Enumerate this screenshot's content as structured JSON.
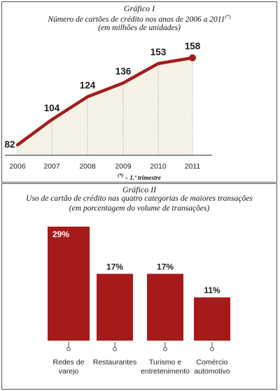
{
  "chart_data": [
    {
      "type": "line",
      "heading": "Gráfico I",
      "title": "Número de cartões de crédito nos anos de 2006 a 2011",
      "title_marker": "(*)",
      "subtitle": "(em milhões de unidades)",
      "footnote_marker": "(*)",
      "footnote": "– 1.º trimestre",
      "x": [
        "2006",
        "2007",
        "2008",
        "2009",
        "2010",
        "2011"
      ],
      "values": [
        82,
        104,
        124,
        136,
        153,
        158
      ],
      "data_labels": [
        "82",
        "104",
        "124",
        "136",
        "153",
        "158"
      ],
      "ylim": [
        65,
        170
      ],
      "grid": false,
      "colors": {
        "line": "#a31d1d",
        "fill": "#f6f3e6",
        "marker": "#a31d1d"
      }
    },
    {
      "type": "bar",
      "heading": "Gráfico II",
      "title": "Uso de cartão de crédito nas quatro categorias de maiores transações",
      "subtitle": "(em porcentagem do volume de transações)",
      "categories": [
        [
          "Redes de",
          "varejo"
        ],
        [
          "Restaurantes"
        ],
        [
          "Turismo e",
          "entretenimento"
        ],
        [
          "Comércio",
          "automotivo"
        ]
      ],
      "values": [
        29,
        17,
        17,
        11
      ],
      "data_labels": [
        "29%",
        "17%",
        "17%",
        "11%"
      ],
      "ylim": [
        0,
        29
      ],
      "grid": false,
      "colors": {
        "bar": "#a71a1a",
        "label_on_bar": "#ffffff",
        "label": "#222222"
      }
    }
  ]
}
